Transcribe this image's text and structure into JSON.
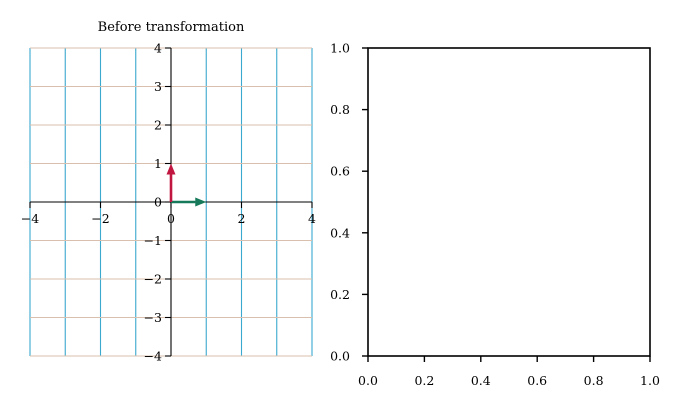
{
  "figure": {
    "background": "#ffffff"
  },
  "chart_data": [
    {
      "type": "line",
      "title": "Before transformation",
      "xlabel": "",
      "ylabel": "",
      "xlim": [
        -4,
        4
      ],
      "ylim": [
        -4,
        4
      ],
      "xticks": [
        -4,
        -2,
        0,
        2,
        4
      ],
      "xtick_labels": [
        "−4",
        "−2",
        "0",
        "2",
        "4"
      ],
      "yticks": [
        -4,
        -3,
        -2,
        -1,
        0,
        1,
        2,
        3,
        4
      ],
      "ytick_labels": [
        "−4",
        "−3",
        "−2",
        "−1",
        "0",
        "1",
        "2",
        "3",
        "4"
      ],
      "spines": "centered at origin",
      "grid_vertical": {
        "x": [
          -4,
          -3,
          -2,
          -1,
          1,
          2,
          3,
          4
        ],
        "color": "#3aa8cf"
      },
      "grid_horizontal": {
        "y": [
          -4,
          -3,
          -2,
          -1,
          1,
          2,
          3,
          4
        ],
        "color": "#d9bfae"
      },
      "vectors": [
        {
          "from": [
            0,
            0
          ],
          "to": [
            1,
            0
          ],
          "color": "#167a5a"
        },
        {
          "from": [
            0,
            0
          ],
          "to": [
            0,
            1
          ],
          "color": "#c0163f"
        }
      ]
    },
    {
      "type": "line",
      "title": "",
      "xlabel": "",
      "ylabel": "",
      "xlim": [
        0,
        1
      ],
      "ylim": [
        0,
        1
      ],
      "xticks": [
        0,
        0.2,
        0.4,
        0.6,
        0.8,
        1.0
      ],
      "xtick_labels": [
        "0.0",
        "0.2",
        "0.4",
        "0.6",
        "0.8",
        "1.0"
      ],
      "yticks": [
        0,
        0.2,
        0.4,
        0.6,
        0.8,
        1.0
      ],
      "ytick_labels": [
        "0.0",
        "0.2",
        "0.4",
        "0.6",
        "0.8",
        "1.0"
      ],
      "spines": "box",
      "series": []
    }
  ]
}
